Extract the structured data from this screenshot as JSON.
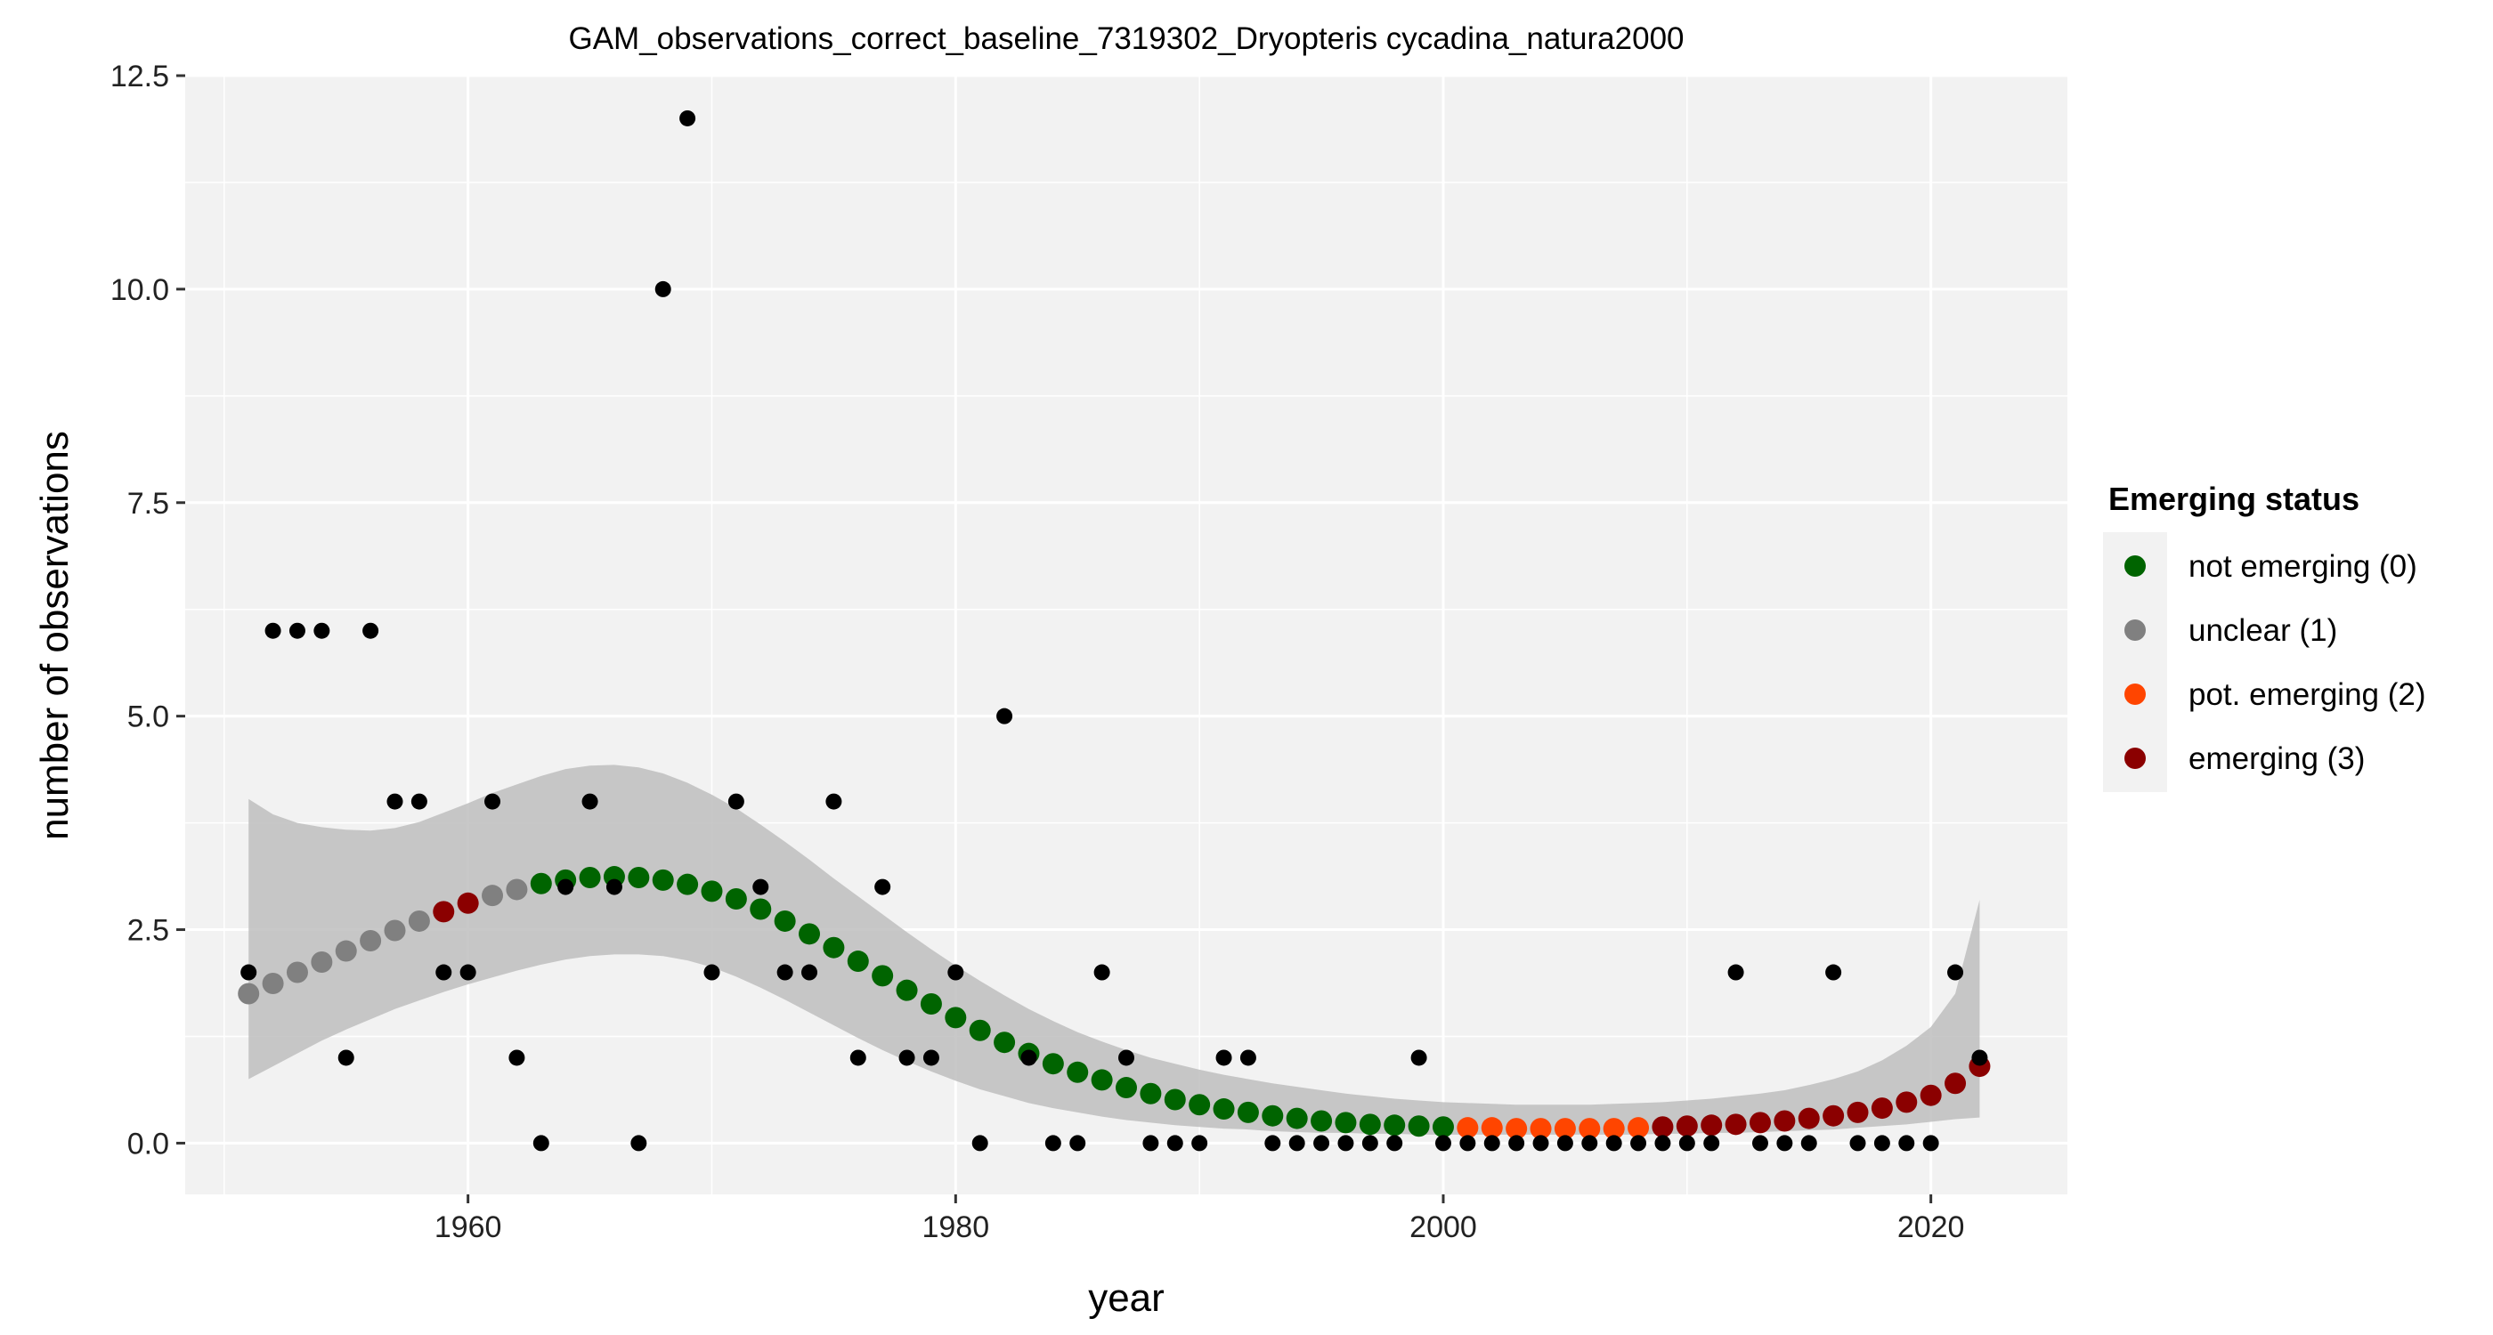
{
  "chart_data": {
    "type": "scatter",
    "title": "GAM_observations_correct_baseline_7319302_Dryopteris cycadina_natura2000",
    "xlabel": "year",
    "ylabel": "number of observations",
    "xlim": [
      1948.4,
      2025.6
    ],
    "ylim": [
      -0.6,
      12.5
    ],
    "x_ticks": [
      1960,
      1980,
      2000,
      2020
    ],
    "y_ticks": [
      0,
      2.5,
      5,
      7.5,
      10,
      12.5
    ],
    "y_tick_labels": [
      "0.0",
      "2.5",
      "5.0",
      "7.5",
      "10.0",
      "12.5"
    ],
    "grid": true,
    "legend_position": "right",
    "legend": {
      "title": "Emerging status",
      "items": [
        {
          "label": "not emerging (0)",
          "color": "#006400",
          "status": 0
        },
        {
          "label": "unclear (1)",
          "color": "#808080",
          "status": 1
        },
        {
          "label": "pot. emerging (2)",
          "color": "#FF4500",
          "status": 2
        },
        {
          "label": "emerging (3)",
          "color": "#8B0000",
          "status": 3
        }
      ]
    },
    "observations": {
      "x": [
        1951,
        1952,
        1953,
        1954,
        1955,
        1956,
        1957,
        1958,
        1959,
        1960,
        1961,
        1962,
        1963,
        1964,
        1965,
        1966,
        1967,
        1968,
        1969,
        1970,
        1971,
        1972,
        1973,
        1974,
        1975,
        1976,
        1977,
        1978,
        1979,
        1980,
        1981,
        1982,
        1983,
        1984,
        1985,
        1986,
        1987,
        1988,
        1989,
        1990,
        1991,
        1992,
        1993,
        1994,
        1995,
        1996,
        1997,
        1998,
        1999,
        2000,
        2001,
        2002,
        2003,
        2004,
        2005,
        2006,
        2007,
        2008,
        2009,
        2010,
        2011,
        2012,
        2013,
        2014,
        2015,
        2016,
        2017,
        2018,
        2019,
        2020,
        2021,
        2022
      ],
      "y": [
        2,
        6,
        6,
        6,
        1,
        6,
        4,
        4,
        2,
        2,
        4,
        1,
        0,
        3,
        4,
        3,
        0,
        10,
        12,
        2,
        4,
        3,
        2,
        2,
        4,
        1,
        3,
        1,
        1,
        2,
        0,
        5,
        1,
        0,
        0,
        2,
        1,
        0,
        0,
        0,
        1,
        1,
        0,
        0,
        0,
        0,
        0,
        0,
        1,
        0,
        0,
        0,
        0,
        0,
        0,
        0,
        0,
        0,
        0,
        0,
        0,
        2,
        0,
        0,
        0,
        2,
        0,
        0,
        0,
        0,
        2,
        1
      ]
    },
    "fit": {
      "x": [
        1951,
        1952,
        1953,
        1954,
        1955,
        1956,
        1957,
        1958,
        1959,
        1960,
        1961,
        1962,
        1963,
        1964,
        1965,
        1966,
        1967,
        1968,
        1969,
        1970,
        1971,
        1972,
        1973,
        1974,
        1975,
        1976,
        1977,
        1978,
        1979,
        1980,
        1981,
        1982,
        1983,
        1984,
        1985,
        1986,
        1987,
        1988,
        1989,
        1990,
        1991,
        1992,
        1993,
        1994,
        1995,
        1996,
        1997,
        1998,
        1999,
        2000,
        2001,
        2002,
        2003,
        2004,
        2005,
        2006,
        2007,
        2008,
        2009,
        2010,
        2011,
        2012,
        2013,
        2014,
        2015,
        2016,
        2017,
        2018,
        2019,
        2020,
        2021,
        2022
      ],
      "y": [
        1.75,
        1.87,
        2.0,
        2.12,
        2.25,
        2.37,
        2.49,
        2.6,
        2.71,
        2.81,
        2.9,
        2.97,
        3.04,
        3.08,
        3.11,
        3.12,
        3.11,
        3.08,
        3.03,
        2.95,
        2.86,
        2.74,
        2.6,
        2.45,
        2.29,
        2.13,
        1.96,
        1.79,
        1.63,
        1.47,
        1.32,
        1.18,
        1.05,
        0.93,
        0.83,
        0.74,
        0.65,
        0.58,
        0.51,
        0.45,
        0.4,
        0.36,
        0.32,
        0.29,
        0.26,
        0.24,
        0.22,
        0.21,
        0.2,
        0.19,
        0.18,
        0.18,
        0.17,
        0.17,
        0.17,
        0.17,
        0.17,
        0.18,
        0.19,
        0.2,
        0.21,
        0.22,
        0.24,
        0.26,
        0.29,
        0.32,
        0.36,
        0.41,
        0.48,
        0.56,
        0.7,
        0.9
      ],
      "status": [
        1,
        1,
        1,
        1,
        1,
        1,
        1,
        1,
        3,
        3,
        1,
        1,
        0,
        0,
        0,
        0,
        0,
        0,
        0,
        0,
        0,
        0,
        0,
        0,
        0,
        0,
        0,
        0,
        0,
        0,
        0,
        0,
        0,
        0,
        0,
        0,
        0,
        0,
        0,
        0,
        0,
        0,
        0,
        0,
        0,
        0,
        0,
        0,
        0,
        0,
        2,
        2,
        2,
        2,
        2,
        2,
        2,
        2,
        3,
        3,
        3,
        3,
        3,
        3,
        3,
        3,
        3,
        3,
        3,
        3,
        3,
        3
      ],
      "ci_lower": [
        0.75,
        0.9,
        1.05,
        1.2,
        1.33,
        1.45,
        1.57,
        1.67,
        1.77,
        1.86,
        1.94,
        2.02,
        2.09,
        2.15,
        2.19,
        2.21,
        2.21,
        2.19,
        2.14,
        2.06,
        1.95,
        1.82,
        1.68,
        1.53,
        1.38,
        1.23,
        1.09,
        0.96,
        0.84,
        0.73,
        0.63,
        0.55,
        0.47,
        0.41,
        0.36,
        0.31,
        0.27,
        0.24,
        0.21,
        0.19,
        0.17,
        0.16,
        0.14,
        0.13,
        0.12,
        0.12,
        0.11,
        0.11,
        0.1,
        0.1,
        0.1,
        0.1,
        0.1,
        0.1,
        0.1,
        0.1,
        0.1,
        0.1,
        0.11,
        0.11,
        0.12,
        0.12,
        0.13,
        0.14,
        0.15,
        0.16,
        0.18,
        0.2,
        0.22,
        0.25,
        0.28,
        0.3
      ],
      "ci_upper": [
        4.03,
        3.85,
        3.75,
        3.7,
        3.67,
        3.66,
        3.69,
        3.76,
        3.87,
        3.98,
        4.1,
        4.2,
        4.3,
        4.38,
        4.42,
        4.43,
        4.4,
        4.33,
        4.22,
        4.08,
        3.92,
        3.73,
        3.53,
        3.32,
        3.1,
        2.89,
        2.68,
        2.47,
        2.27,
        2.08,
        1.9,
        1.73,
        1.57,
        1.43,
        1.3,
        1.19,
        1.09,
        1.0,
        0.93,
        0.86,
        0.8,
        0.75,
        0.7,
        0.66,
        0.62,
        0.58,
        0.55,
        0.52,
        0.5,
        0.48,
        0.47,
        0.46,
        0.45,
        0.45,
        0.45,
        0.45,
        0.46,
        0.47,
        0.48,
        0.5,
        0.52,
        0.55,
        0.58,
        0.62,
        0.68,
        0.75,
        0.84,
        0.97,
        1.14,
        1.36,
        1.75,
        2.85
      ]
    },
    "colors": {
      "observation": "#000000",
      "ci_band": "#BEBEBE",
      "panel_background": "#F2F2F2",
      "grid": "#FFFFFF"
    }
  }
}
